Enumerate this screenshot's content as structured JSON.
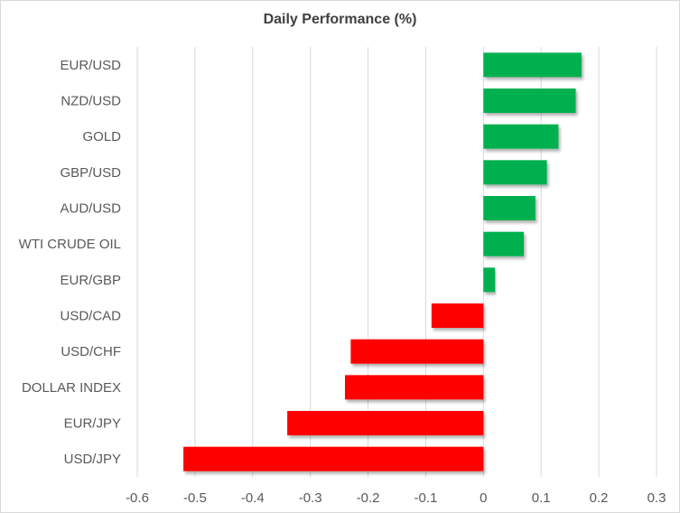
{
  "chart_data": {
    "type": "bar",
    "orientation": "horizontal",
    "title": "Daily Performance  (%)",
    "xlabel": "",
    "ylabel": "",
    "xlim": [
      -0.6,
      0.3
    ],
    "xticks": [
      "-0.6",
      "-0.5",
      "-0.4",
      "-0.3",
      "-0.2",
      "-0.1",
      "0",
      "0.1",
      "0.2",
      "0.3"
    ],
    "grid": "vertical",
    "legend": "none",
    "categories": [
      "EUR/USD",
      "NZD/USD",
      "GOLD",
      "GBP/USD",
      "AUD/USD",
      "WTI CRUDE OIL",
      "EUR/GBP",
      "USD/CAD",
      "USD/CHF",
      "DOLLAR INDEX",
      "EUR/JPY",
      "USD/JPY"
    ],
    "values": [
      0.17,
      0.16,
      0.13,
      0.11,
      0.09,
      0.07,
      0.02,
      -0.09,
      -0.23,
      -0.24,
      -0.34,
      -0.52
    ],
    "colors": {
      "positive": "#00b050",
      "negative": "#ff0000",
      "grid": "#d9d9d9"
    }
  }
}
